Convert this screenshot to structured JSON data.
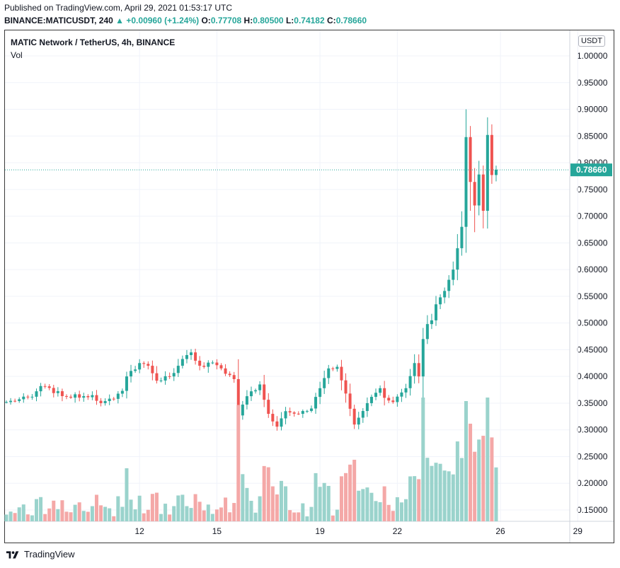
{
  "header": {
    "published": "Published on TradingView.com, April 29, 2021 01:53:17 UTC",
    "symbol": "BINANCE:MATICUSDT, 240",
    "change": "+0.00960 (+1.24%)",
    "o_label": "O:",
    "o_value": "0.77708",
    "h_label": "H:",
    "h_value": "0.80500",
    "l_label": "L:",
    "l_value": "0.74182",
    "c_label": "C:",
    "c_value": "0.78660"
  },
  "legend": {
    "title": "MATIC Network / TetherUS, 4h, BINANCE",
    "volume": "Vol"
  },
  "currency_badge": "USDT",
  "footer": {
    "brand": "TradingView"
  },
  "colors": {
    "up": "#26a69a",
    "down": "#ef5350",
    "up_vol": "#9ad3cc",
    "down_vol": "#f4a8a7",
    "grid": "#f0f3fa"
  },
  "chart_data": {
    "type": "candlestick",
    "y_ticks": [
      "1.00000",
      "0.95000",
      "0.90000",
      "0.85000",
      "0.80000",
      "0.75000",
      "0.70000",
      "0.65000",
      "0.60000",
      "0.55000",
      "0.50000",
      "0.45000",
      "0.40000",
      "0.35000",
      "0.30000",
      "0.25000",
      "0.20000",
      "0.15000"
    ],
    "x_ticks": [
      {
        "label": "12",
        "index": 31
      },
      {
        "label": "15",
        "index": 49
      },
      {
        "label": "19",
        "index": 73
      },
      {
        "label": "22",
        "index": 91
      },
      {
        "label": "26",
        "index": 115
      },
      {
        "label": "29",
        "index": 133
      }
    ],
    "last_price": "0.78660",
    "ylim": [
      0.125,
      1.025
    ],
    "waypoints": [
      [
        0,
        0.352
      ],
      [
        6,
        0.362
      ],
      [
        8,
        0.382
      ],
      [
        14,
        0.362
      ],
      [
        20,
        0.365
      ],
      [
        22,
        0.35
      ],
      [
        25,
        0.358
      ],
      [
        27,
        0.373
      ],
      [
        28,
        0.4
      ],
      [
        31,
        0.425
      ],
      [
        33,
        0.42
      ],
      [
        35,
        0.392
      ],
      [
        38,
        0.4
      ],
      [
        40,
        0.42
      ],
      [
        42,
        0.44
      ],
      [
        43,
        0.445
      ],
      [
        45,
        0.42
      ],
      [
        48,
        0.426
      ],
      [
        51,
        0.405
      ],
      [
        53,
        0.395
      ],
      [
        54,
        0.327
      ],
      [
        56,
        0.363
      ],
      [
        59,
        0.385
      ],
      [
        61,
        0.33
      ],
      [
        63,
        0.306
      ],
      [
        65,
        0.335
      ],
      [
        68,
        0.33
      ],
      [
        71,
        0.34
      ],
      [
        73,
        0.378
      ],
      [
        75,
        0.415
      ],
      [
        77,
        0.418
      ],
      [
        79,
        0.368
      ],
      [
        81,
        0.31
      ],
      [
        84,
        0.35
      ],
      [
        87,
        0.378
      ],
      [
        88,
        0.36
      ],
      [
        90,
        0.352
      ],
      [
        93,
        0.378
      ],
      [
        95,
        0.425
      ],
      [
        96,
        0.4
      ],
      [
        97,
        0.47
      ],
      [
        98,
        0.498
      ],
      [
        99,
        0.505
      ],
      [
        100,
        0.535
      ],
      [
        101,
        0.548
      ],
      [
        102,
        0.56
      ],
      [
        104,
        0.6
      ],
      [
        105,
        0.64
      ],
      [
        106,
        0.68
      ],
      [
        107,
        0.848
      ],
      [
        108,
        0.764
      ],
      [
        109,
        0.72
      ],
      [
        110,
        0.778
      ],
      [
        111,
        0.71
      ],
      [
        112,
        0.852
      ],
      [
        113,
        0.777
      ],
      [
        114,
        0.787
      ]
    ]
  }
}
